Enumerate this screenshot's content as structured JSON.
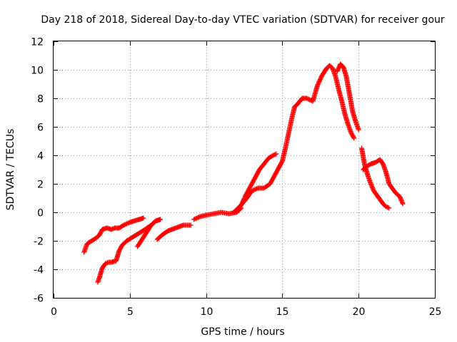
{
  "chart_data": {
    "type": "scatter",
    "title": "Day 218 of 2018, Sidereal Day-to-day VTEC variation (SDTVAR) for receiver gour",
    "xlabel": "GPS time / hours",
    "ylabel": "SDTVAR / TECUs",
    "xlim": [
      0,
      25
    ],
    "ylim": [
      -6,
      12
    ],
    "xticks": [
      0,
      5,
      10,
      15,
      20,
      25
    ],
    "yticks": [
      -6,
      -4,
      -2,
      0,
      2,
      4,
      6,
      8,
      10,
      12
    ],
    "grid": true,
    "marker": "plus",
    "color": "#ff0000",
    "series": [
      {
        "x": [
          2.0,
          2.2,
          2.5,
          2.8,
          3.0,
          3.2,
          3.5,
          3.8,
          4.0,
          4.3,
          4.6,
          5.0,
          5.3,
          5.6,
          5.9
        ],
        "y": [
          -2.8,
          -2.2,
          -2.0,
          -1.8,
          -1.6,
          -1.2,
          -1.1,
          -1.2,
          -1.1,
          -1.1,
          -0.9,
          -0.7,
          -0.6,
          -0.5,
          -0.4
        ]
      },
      {
        "x": [
          2.9,
          3.0,
          3.2,
          3.4,
          3.6,
          3.8,
          4.1,
          4.3,
          4.5,
          4.8,
          5.1,
          5.4,
          5.7,
          6.0,
          6.4,
          6.7,
          7.0
        ],
        "y": [
          -4.9,
          -4.6,
          -3.9,
          -3.6,
          -3.5,
          -3.5,
          -3.4,
          -2.7,
          -2.3,
          -2.0,
          -1.8,
          -1.6,
          -1.4,
          -1.2,
          -0.9,
          -0.6,
          -0.5
        ]
      },
      {
        "x": [
          5.5,
          5.8,
          6.1,
          6.4,
          6.7,
          7.0
        ],
        "y": [
          -2.4,
          -1.9,
          -1.4,
          -0.9,
          -0.6,
          -0.5
        ]
      },
      {
        "x": [
          6.8,
          7.1,
          7.5,
          8.0,
          8.5,
          9.0
        ],
        "y": [
          -1.9,
          -1.6,
          -1.3,
          -1.1,
          -0.9,
          -0.9
        ]
      },
      {
        "x": [
          9.2,
          9.6,
          10.0,
          10.5,
          11.0,
          11.5,
          12.0,
          12.3
        ],
        "y": [
          -0.5,
          -0.3,
          -0.2,
          -0.1,
          0.0,
          -0.1,
          0.0,
          0.3
        ]
      },
      {
        "x": [
          12.0,
          12.3,
          12.6,
          12.9,
          13.2,
          13.5,
          13.8,
          14.1,
          14.4,
          14.6
        ],
        "y": [
          0.0,
          0.5,
          1.2,
          1.8,
          2.4,
          3.0,
          3.4,
          3.8,
          4.0,
          4.1
        ]
      },
      {
        "x": [
          11.8,
          12.2,
          12.6,
          13.0,
          13.4,
          13.8,
          14.2,
          14.6,
          15.0,
          15.2,
          15.4,
          15.6,
          15.8,
          16.0,
          16.3,
          16.6,
          17.0,
          17.3,
          17.6,
          17.9,
          18.1,
          18.3,
          18.5,
          18.7,
          18.9,
          19.1,
          19.3,
          19.5,
          19.7
        ],
        "y": [
          0.0,
          0.4,
          0.9,
          1.5,
          1.7,
          1.7,
          2.0,
          2.8,
          3.6,
          4.5,
          5.5,
          6.5,
          7.4,
          7.6,
          8.0,
          8.0,
          7.8,
          8.9,
          9.6,
          10.1,
          10.3,
          10.1,
          9.5,
          8.6,
          7.8,
          6.9,
          6.2,
          5.6,
          5.2
        ]
      },
      {
        "x": [
          18.6,
          18.8,
          19.0,
          19.2,
          19.4,
          19.6,
          19.8,
          20.0
        ],
        "y": [
          9.9,
          10.4,
          10.2,
          9.5,
          8.3,
          7.1,
          6.4,
          5.8
        ]
      },
      {
        "x": [
          20.2,
          20.4,
          20.6,
          20.8,
          21.0,
          21.2,
          21.4,
          21.6,
          21.8,
          22.0
        ],
        "y": [
          4.5,
          3.3,
          2.6,
          2.0,
          1.5,
          1.2,
          0.9,
          0.6,
          0.4,
          0.3
        ]
      },
      {
        "x": [
          20.3,
          20.5,
          20.8,
          21.1,
          21.4,
          21.6,
          21.8,
          22.0,
          22.2,
          22.4,
          22.7,
          22.9
        ],
        "y": [
          3.0,
          3.2,
          3.4,
          3.5,
          3.7,
          3.4,
          2.8,
          2.0,
          1.7,
          1.4,
          1.1,
          0.6
        ]
      }
    ]
  }
}
